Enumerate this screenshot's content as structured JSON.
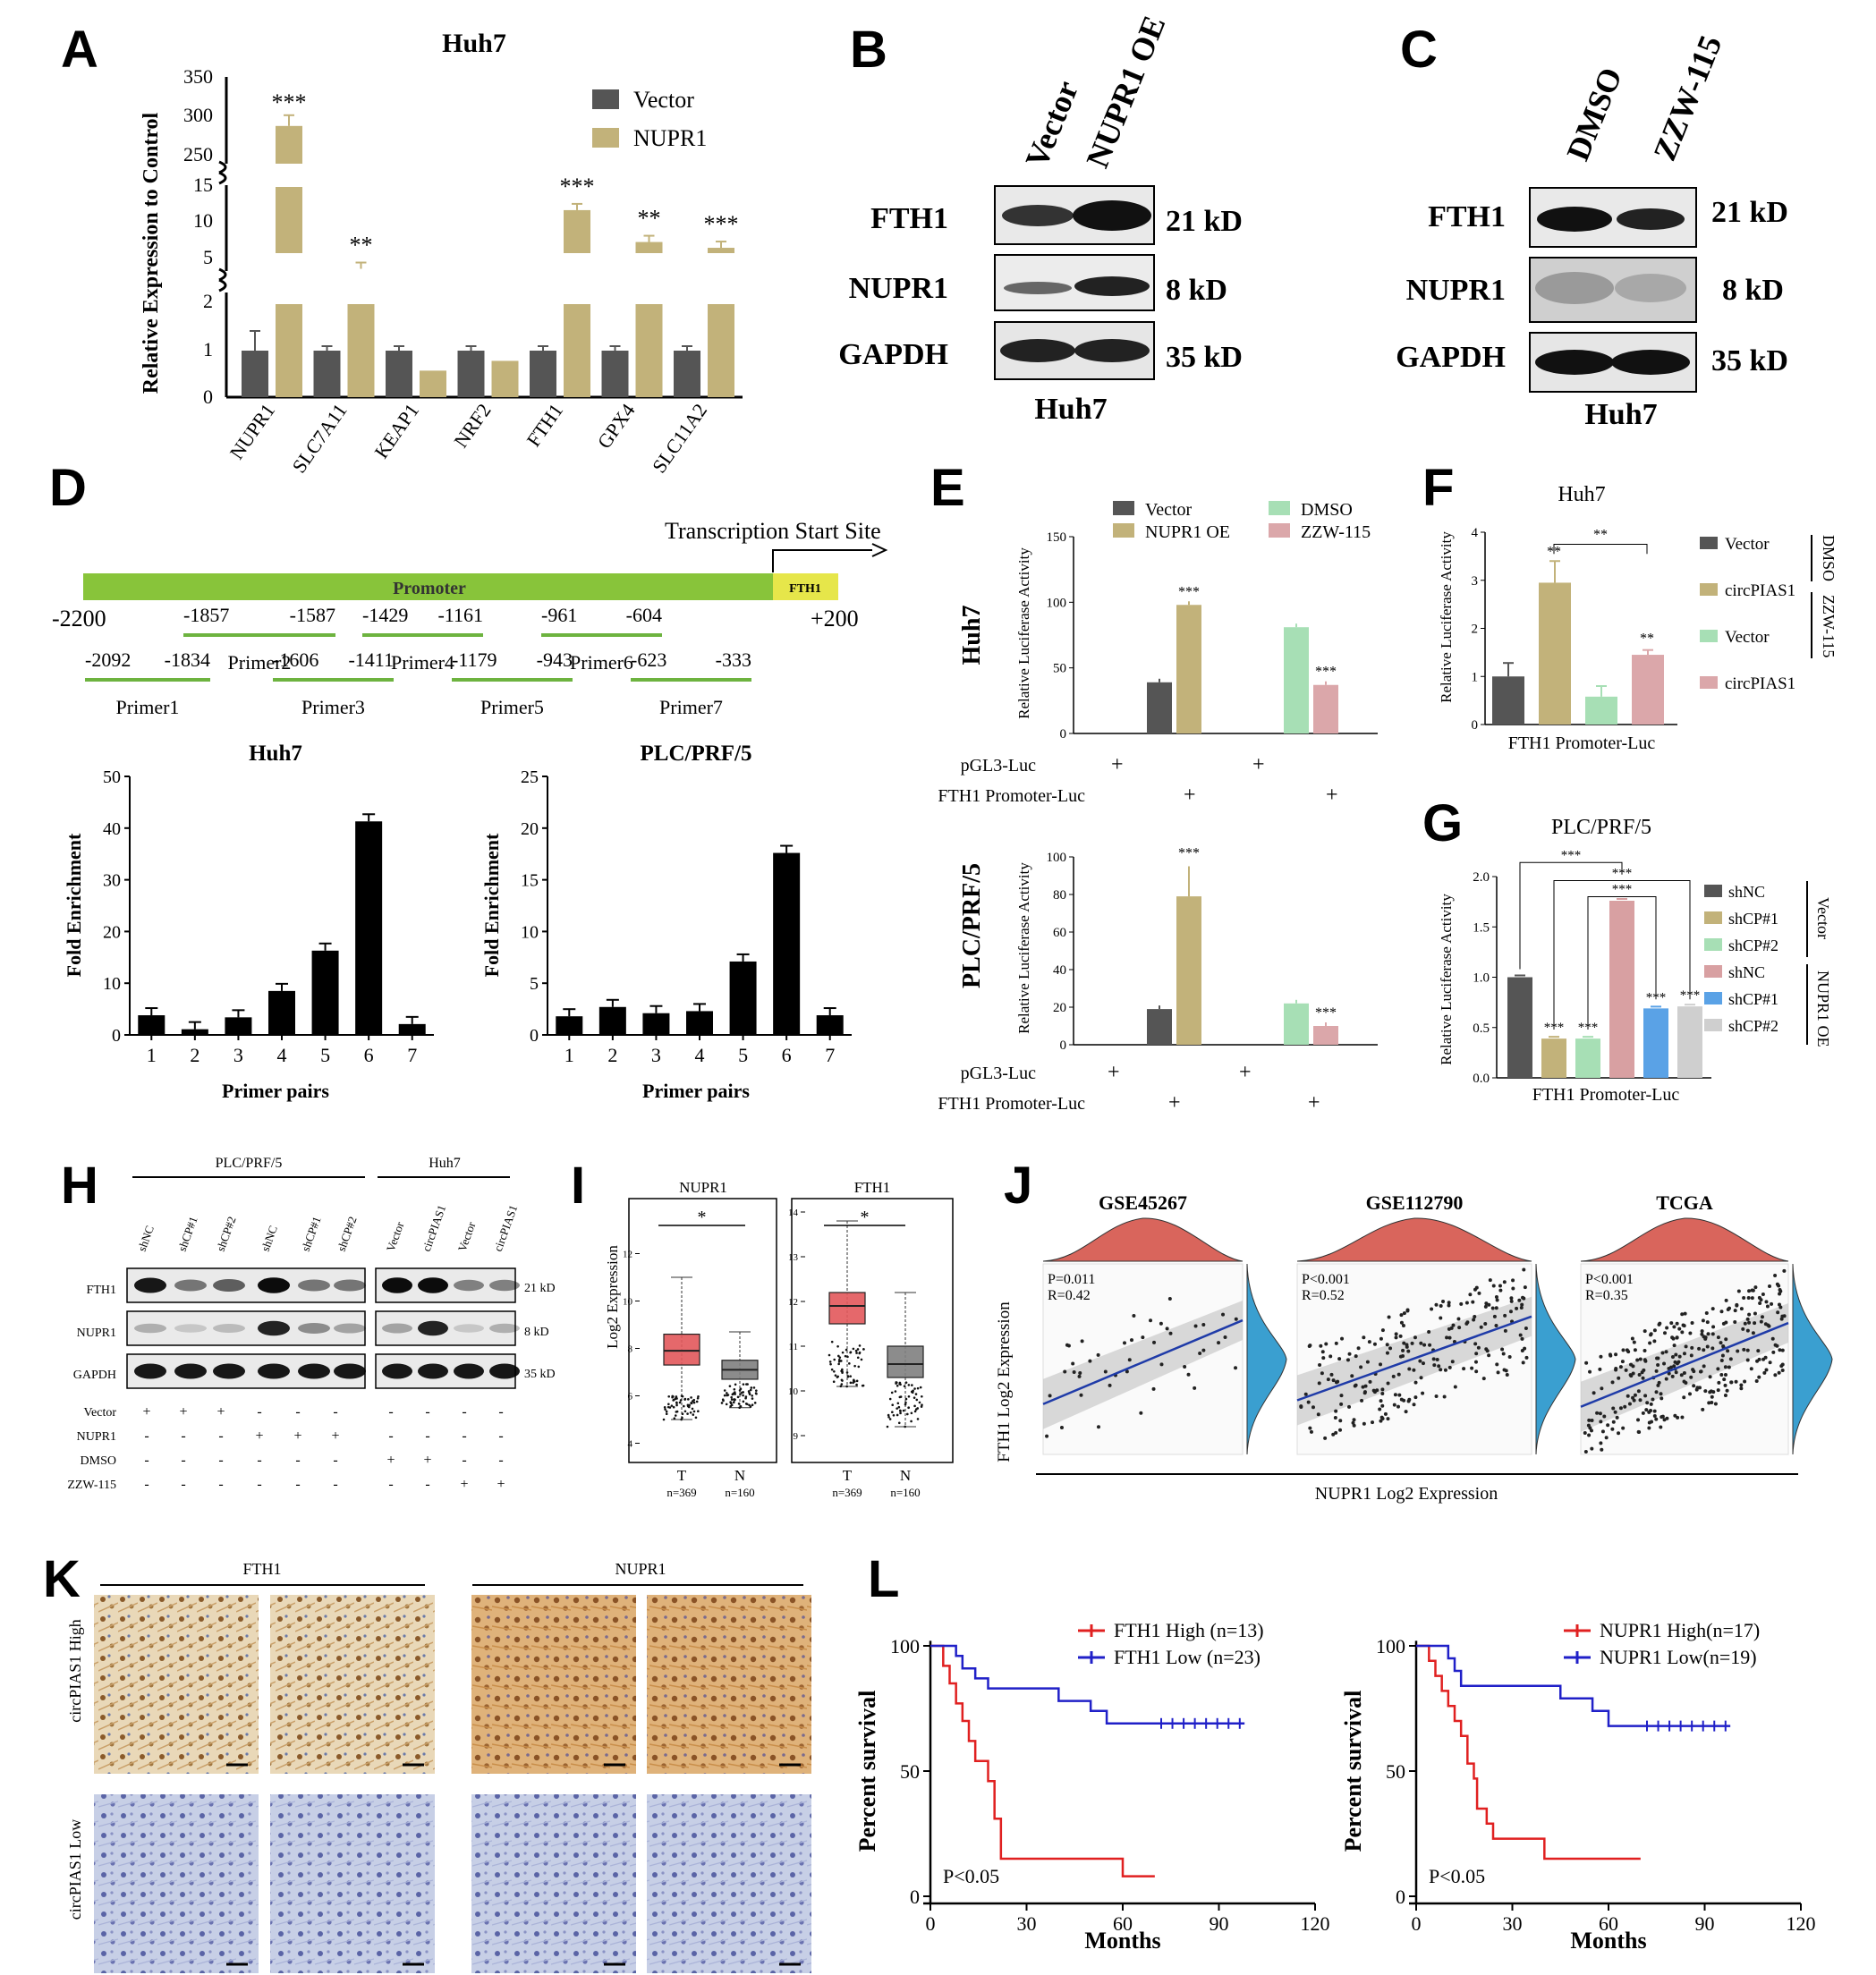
{
  "panel_letters": [
    "A",
    "B",
    "C",
    "D",
    "E",
    "F",
    "G",
    "H",
    "I",
    "J",
    "K",
    "L"
  ],
  "colors": {
    "vector": "#555555",
    "nupr1": "#c2b27a",
    "dmso": "#a7dfb5",
    "zzw": "#dba7aa",
    "shNC": "#555555",
    "shCP1": "#c2b27a",
    "shCP2": "#a7dfb5",
    "shNC2": "#d8a0a2",
    "shCP1b": "#5aa2e6",
    "shCP2b": "#cfcfcf",
    "promoter": "#88c43a",
    "fth1box": "#e6e64a",
    "primer": "#6db33f",
    "boxT": "#e2585b",
    "boxN": "#808080",
    "ridge": "#3a9fd0",
    "dens": "#d9655c"
  },
  "A": {
    "title": "Huh7",
    "ylabel": "Relative Expression to Control",
    "legend": [
      "Vector",
      "NUPR1"
    ],
    "seg_ticks": {
      "top": [
        "250",
        "300",
        "350"
      ],
      "mid": [
        "5",
        "10",
        "15"
      ],
      "bot": [
        "0",
        "1",
        "2"
      ]
    },
    "stars": [
      "***",
      "**",
      "",
      "",
      "***",
      "**",
      "***"
    ]
  },
  "B": {
    "lanes": [
      "Vector",
      "NUPR1 OE"
    ],
    "rows": [
      "FTH1",
      "NUPR1",
      "GAPDH"
    ],
    "kd": [
      "21 kD",
      "8 kD",
      "35 kD"
    ],
    "cell": "Huh7"
  },
  "C": {
    "lanes": [
      "DMSO",
      "ZZW-115"
    ],
    "rows": [
      "FTH1",
      "NUPR1",
      "GAPDH"
    ],
    "kd": [
      "21 kD",
      "8 kD",
      "35 kD"
    ],
    "cell": "Huh7"
  },
  "D": {
    "tss": "Transcription Start Site",
    "promoter": "Promoter",
    "fth1": "FTH1",
    "start": "-2200",
    "end": "+200",
    "primers": [
      {
        "name": "Primer1",
        "a": "-2092",
        "b": "-1834"
      },
      {
        "name": "Primer2",
        "a": "-1857",
        "b": "-1587"
      },
      {
        "name": "Primer3",
        "a": "-1606",
        "b": "-1411"
      },
      {
        "name": "Primer4",
        "a": "-1429",
        "b": "-1161"
      },
      {
        "name": "Primer5",
        "a": "-1179",
        "b": "-943"
      },
      {
        "name": "Primer6",
        "a": "-961",
        "b": "-604"
      },
      {
        "name": "Primer7",
        "a": "-623",
        "b": "-333"
      }
    ],
    "ylabel": "Fold Enrichment",
    "xlabel": "Primer pairs",
    "huh7_title": "Huh7",
    "plc_title": "PLC/PRF/5"
  },
  "E": {
    "ylabel": "Relative Luciferase Activity",
    "row1": "Huh7",
    "row2": "PLC/PRF/5",
    "legend": [
      "Vector",
      "NUPR1 OE",
      "DMSO",
      "ZZW-115"
    ],
    "x1": "pGL3-Luc",
    "x2": "FTH1 Promoter-Luc",
    "plus": "+",
    "stars": "***",
    "yticks1": [
      "0",
      "50",
      "100",
      "150"
    ],
    "yticks2": [
      "0",
      "20",
      "40",
      "60",
      "80",
      "100"
    ]
  },
  "F": {
    "title": "Huh7",
    "ylabel": "Relative Luciferase Activity",
    "xlabel": "FTH1 Promoter-Luc",
    "legend": [
      "Vector",
      "circPIAS1",
      "Vector",
      "circPIAS1"
    ],
    "groups": [
      "DMSO",
      "ZZW-115"
    ],
    "yticks": [
      "0",
      "1",
      "2",
      "3",
      "4"
    ],
    "stars": "**"
  },
  "G": {
    "title": "PLC/PRF/5",
    "ylabel": "Relative Luciferase Activity",
    "xlabel": "FTH1 Promoter-Luc",
    "legend": [
      "shNC",
      "shCP#1",
      "shCP#2",
      "shNC",
      "shCP#1",
      "shCP#2"
    ],
    "groups": [
      "Vector",
      "NUPR1 OE"
    ],
    "yticks": [
      "0.0",
      "0.5",
      "1.0",
      "1.5",
      "2.0"
    ],
    "stars": "***"
  },
  "H": {
    "left_title": "PLC/PRF/5",
    "right_title": "Huh7",
    "left_lanes": [
      "shNC",
      "shCP#1",
      "shCP#2",
      "shNC",
      "shCP#1",
      "shCP#2"
    ],
    "right_lanes": [
      "Vector",
      "circPIAS1",
      "Vector",
      "circPIAS1"
    ],
    "rows": [
      "FTH1",
      "NUPR1",
      "GAPDH"
    ],
    "kd": [
      "21 kD",
      "8 kD",
      "35 kD"
    ],
    "treat": [
      "Vector",
      "NUPR1",
      "DMSO",
      "ZZW-115"
    ],
    "signs": [
      [
        "+",
        "+",
        "+",
        "-",
        "-",
        "-",
        "-",
        "-",
        "-",
        "-"
      ],
      [
        "-",
        "-",
        "-",
        "+",
        "+",
        "+",
        "-",
        "-",
        "-",
        "-"
      ],
      [
        "-",
        "-",
        "-",
        "-",
        "-",
        "-",
        "+",
        "+",
        "-",
        "-"
      ],
      [
        "-",
        "-",
        "-",
        "-",
        "-",
        "-",
        "-",
        "-",
        "+",
        "+"
      ]
    ]
  },
  "I": {
    "left": "NUPR1",
    "right": "FTH1",
    "ylabel": "Log2 Expression",
    "T": "T",
    "N": "N",
    "nT": "n=369",
    "nN": "n=160",
    "star": "*",
    "lyt": [
      "4",
      "6",
      "8",
      "10",
      "12"
    ],
    "ryt": [
      "9",
      "10",
      "11",
      "12",
      "13",
      "14"
    ]
  },
  "J": {
    "titles": [
      "GSE45267",
      "GSE112790",
      "TCGA"
    ],
    "p": [
      "P=0.011",
      "P<0.001",
      "P<0.001"
    ],
    "r": [
      "R=0.42",
      "R=0.52",
      "R=0.35"
    ],
    "ylabel": "FTH1 Log2 Expression",
    "xlabel": "NUPR1 Log2 Expression"
  },
  "K": {
    "cols": [
      "FTH1",
      "NUPR1"
    ],
    "rows": [
      "circPIAS1 High",
      "circPIAS1 Low"
    ]
  },
  "L": {
    "ylabel": "Percent survival",
    "xlabel": "Months",
    "p": "P<0.05",
    "left_legend": [
      "FTH1 High (n=13)",
      "FTH1 Low (n=23)"
    ],
    "right_legend": [
      "NUPR1 High(n=17)",
      "NUPR1 Low(n=19)"
    ],
    "xticks": [
      "0",
      "30",
      "60",
      "90",
      "120"
    ],
    "yticks": [
      "0",
      "50",
      "100"
    ]
  },
  "chart_data": [
    {
      "type": "bar",
      "panel": "A",
      "title": "Huh7",
      "ylabel": "Relative Expression to Control",
      "categories": [
        "NUPR1",
        "SLC7A11",
        "KEAP1",
        "NRF2",
        "FTH1",
        "GPX4",
        "SLC11A2"
      ],
      "series": [
        {
          "name": "Vector",
          "values": [
            1,
            1,
            1,
            1,
            1,
            1,
            1
          ]
        },
        {
          "name": "NUPR1",
          "values": [
            287,
            3.7,
            0.57,
            0.78,
            11.8,
            7.4,
            6.6
          ]
        }
      ]
    },
    {
      "type": "bar",
      "panel": "D-Huh7",
      "title": "Huh7",
      "xlabel": "Primer pairs",
      "ylabel": "Fold Enrichment",
      "categories": [
        "1",
        "2",
        "3",
        "4",
        "5",
        "6",
        "7"
      ],
      "values": [
        3.8,
        1.1,
        3.4,
        8.5,
        16.3,
        41.3,
        2.1
      ],
      "ylim": [
        0,
        50
      ],
      "yticks": [
        "0",
        "10",
        "20",
        "30",
        "40",
        "50"
      ]
    },
    {
      "type": "bar",
      "panel": "D-PLC",
      "title": "PLC/PRF/5",
      "xlabel": "Primer pairs",
      "ylabel": "Fold Enrichment",
      "categories": [
        "1",
        "2",
        "3",
        "4",
        "5",
        "6",
        "7"
      ],
      "values": [
        1.8,
        2.7,
        2.1,
        2.3,
        7.1,
        17.6,
        1.9
      ],
      "ylim": [
        0,
        25
      ],
      "yticks": [
        "0",
        "5",
        "10",
        "15",
        "20",
        "25"
      ]
    },
    {
      "type": "bar",
      "panel": "E-Huh7",
      "series": [
        {
          "name": "Vector",
          "values": [
            0,
            39
          ]
        },
        {
          "name": "NUPR1 OE",
          "values": [
            0,
            98
          ]
        },
        {
          "name": "DMSO",
          "values": [
            0,
            81
          ]
        },
        {
          "name": "ZZW-115",
          "values": [
            0,
            37
          ]
        }
      ],
      "ylim": [
        0,
        150
      ]
    },
    {
      "type": "bar",
      "panel": "E-PLC",
      "series": [
        {
          "name": "Vector",
          "values": [
            0,
            19
          ]
        },
        {
          "name": "NUPR1 OE",
          "values": [
            0,
            79
          ]
        },
        {
          "name": "DMSO",
          "values": [
            0,
            22
          ]
        },
        {
          "name": "ZZW-115",
          "values": [
            0,
            10
          ]
        }
      ],
      "ylim": [
        0,
        100
      ]
    },
    {
      "type": "bar",
      "panel": "F",
      "values": [
        1.0,
        2.95,
        0.58,
        1.45
      ],
      "ylim": [
        0,
        4
      ]
    },
    {
      "type": "bar",
      "panel": "G",
      "values": [
        1.0,
        0.39,
        0.39,
        1.76,
        0.69,
        0.71
      ],
      "ylim": [
        0,
        2
      ]
    },
    {
      "type": "line",
      "panel": "L-left",
      "series": [
        {
          "name": "FTH1 High (n=13)"
        },
        {
          "name": "FTH1 Low (n=23)"
        }
      ],
      "xlim": [
        0,
        120
      ],
      "ylim": [
        0,
        100
      ]
    },
    {
      "type": "line",
      "panel": "L-right",
      "series": [
        {
          "name": "NUPR1 High(n=17)"
        },
        {
          "name": "NUPR1 Low(n=19)"
        }
      ],
      "xlim": [
        0,
        120
      ],
      "ylim": [
        0,
        100
      ]
    }
  ]
}
